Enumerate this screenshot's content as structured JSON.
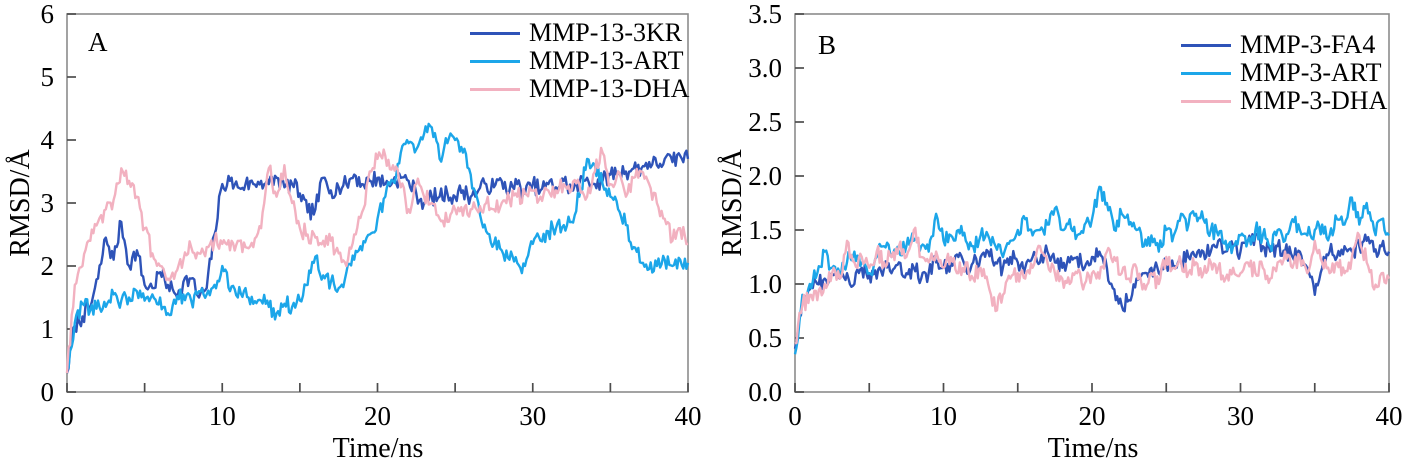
{
  "figure": {
    "panel_a_letter": "A",
    "panel_b_letter": "B",
    "axis_color": "#8c8c8c",
    "tick_color": "#4d4d4d",
    "text_color": "#000000"
  },
  "chart_data": [
    {
      "type": "line",
      "panel": "A",
      "title": "",
      "xlabel": "Time/ns",
      "ylabel": "RMSD/Å",
      "xlim": [
        0,
        40
      ],
      "ylim": [
        0,
        6
      ],
      "grid": false,
      "legend_position": "top-right-inside",
      "x_major_ticks": [
        {
          "v": 0,
          "label": "0"
        },
        {
          "v": 10,
          "label": "10"
        },
        {
          "v": 20,
          "label": "20"
        },
        {
          "v": 30,
          "label": "30"
        },
        {
          "v": 40,
          "label": "40"
        }
      ],
      "x_minor_ticks": [
        5,
        15,
        25,
        35
      ],
      "y_ticks": [
        {
          "v": 0,
          "label": "0"
        },
        {
          "v": 1,
          "label": "1"
        },
        {
          "v": 2,
          "label": "2"
        },
        {
          "v": 3,
          "label": "3"
        },
        {
          "v": 4,
          "label": "4"
        },
        {
          "v": 5,
          "label": "5"
        },
        {
          "v": 6,
          "label": "6"
        }
      ],
      "t_start": 0,
      "t_step": 0.5,
      "series": [
        {
          "name": "MMP-13-3KR",
          "color": "#2e53b8",
          "values": [
            0.3,
            1.05,
            1.2,
            1.35,
            1.8,
            2.45,
            2.1,
            2.7,
            2.0,
            2.25,
            1.7,
            1.65,
            1.9,
            1.7,
            1.55,
            1.75,
            1.8,
            1.5,
            1.65,
            2.5,
            3.3,
            3.35,
            3.25,
            3.3,
            3.3,
            3.35,
            3.3,
            3.4,
            3.25,
            3.3,
            3.15,
            2.85,
            2.9,
            3.4,
            3.2,
            3.25,
            3.3,
            3.45,
            3.3,
            3.35,
            3.4,
            3.3,
            3.35,
            3.4,
            3.35,
            3.15,
            3.0,
            3.1,
            3.1,
            3.15,
            3.1,
            3.2,
            3.1,
            3.2,
            3.3,
            3.25,
            3.35,
            3.2,
            3.3,
            3.15,
            3.3,
            3.2,
            3.3,
            3.25,
            3.35,
            3.2,
            3.3,
            3.4,
            3.3,
            3.35,
            3.45,
            3.5,
            3.5,
            3.55,
            3.55,
            3.65,
            3.6,
            3.7,
            3.65,
            3.75,
            3.7
          ]
        },
        {
          "name": "MMP-13-ART",
          "color": "#1ca6e9",
          "values": [
            0.35,
            1.1,
            1.4,
            1.3,
            1.45,
            1.35,
            1.55,
            1.45,
            1.5,
            1.6,
            1.45,
            1.55,
            1.5,
            1.25,
            1.4,
            1.55,
            1.45,
            1.6,
            1.55,
            1.7,
            2.0,
            1.6,
            1.5,
            1.65,
            1.4,
            1.45,
            1.35,
            1.25,
            1.4,
            1.35,
            1.45,
            1.7,
            2.15,
            1.85,
            1.75,
            1.65,
            1.9,
            2.1,
            2.25,
            2.5,
            2.75,
            3.1,
            3.35,
            3.8,
            3.95,
            3.85,
            4.1,
            4.2,
            3.7,
            3.95,
            4.0,
            3.8,
            3.45,
            3.0,
            2.55,
            2.35,
            2.25,
            2.1,
            2.05,
            2.0,
            2.35,
            2.4,
            2.55,
            2.6,
            2.65,
            2.7,
            3.1,
            3.7,
            3.6,
            3.3,
            3.1,
            2.9,
            2.65,
            2.3,
            2.05,
            1.95,
            2.0,
            2.1,
            2.0,
            2.1,
            2.05
          ]
        },
        {
          "name": "MMP-13-DHA",
          "color": "#f2b1c0",
          "values": [
            0.3,
            1.7,
            2.0,
            2.4,
            2.7,
            2.9,
            3.05,
            3.55,
            3.35,
            3.1,
            2.6,
            2.2,
            2.0,
            1.8,
            1.9,
            2.1,
            2.3,
            2.2,
            2.3,
            2.4,
            2.35,
            2.25,
            2.4,
            2.3,
            2.3,
            2.6,
            3.55,
            3.1,
            3.6,
            3.0,
            2.6,
            2.5,
            2.45,
            2.4,
            2.4,
            2.2,
            2.0,
            2.5,
            2.85,
            3.5,
            3.7,
            3.75,
            3.6,
            3.25,
            2.9,
            3.3,
            3.1,
            3.0,
            2.75,
            2.7,
            2.9,
            2.8,
            2.9,
            2.85,
            3.0,
            2.9,
            3.0,
            3.05,
            3.1,
            3.15,
            3.2,
            3.1,
            3.2,
            3.2,
            3.3,
            3.2,
            3.3,
            3.1,
            3.5,
            3.8,
            3.3,
            3.5,
            3.1,
            3.4,
            3.5,
            3.3,
            3.0,
            2.75,
            2.4,
            2.6,
            2.35
          ]
        }
      ]
    },
    {
      "type": "line",
      "panel": "B",
      "title": "",
      "xlabel": "Time/ns",
      "ylabel": "RMSD/Å",
      "xlim": [
        0,
        40
      ],
      "ylim": [
        0,
        3.5
      ],
      "grid": false,
      "legend_position": "top-right-inside",
      "x_major_ticks": [
        {
          "v": 0,
          "label": "0"
        },
        {
          "v": 10,
          "label": "10"
        },
        {
          "v": 20,
          "label": "20"
        },
        {
          "v": 30,
          "label": "30"
        },
        {
          "v": 40,
          "label": "40"
        }
      ],
      "x_minor_ticks": [
        5,
        15,
        25,
        35
      ],
      "y_ticks": [
        {
          "v": 0,
          "label": "0.0"
        },
        {
          "v": 0.5,
          "label": "0.5"
        },
        {
          "v": 1,
          "label": "1.0"
        },
        {
          "v": 1.5,
          "label": "1.5"
        },
        {
          "v": 2,
          "label": "2.0"
        },
        {
          "v": 2.5,
          "label": "2.5"
        },
        {
          "v": 3,
          "label": "3.0"
        },
        {
          "v": 3.5,
          "label": "3.5"
        }
      ],
      "t_start": 0,
      "t_step": 0.5,
      "series": [
        {
          "name": "MMP-3-FA4",
          "color": "#2e53b8",
          "values": [
            0.4,
            0.85,
            0.95,
            1.0,
            1.05,
            1.1,
            1.05,
            1.1,
            1.0,
            1.15,
            1.1,
            1.05,
            1.15,
            1.1,
            1.2,
            1.1,
            1.15,
            1.05,
            1.1,
            1.2,
            1.15,
            1.2,
            1.25,
            1.15,
            1.2,
            1.25,
            1.3,
            1.2,
            1.15,
            1.25,
            1.2,
            1.15,
            1.25,
            1.2,
            1.3,
            1.2,
            1.15,
            1.2,
            1.25,
            1.15,
            1.25,
            1.3,
            1.15,
            0.95,
            0.8,
            0.85,
            1.05,
            1.1,
            1.15,
            1.1,
            1.2,
            1.15,
            1.2,
            1.25,
            1.25,
            1.3,
            1.3,
            1.4,
            1.3,
            1.35,
            1.3,
            1.4,
            1.45,
            1.35,
            1.3,
            1.35,
            1.3,
            1.25,
            1.3,
            1.15,
            0.9,
            1.15,
            1.3,
            1.25,
            1.35,
            1.3,
            1.35,
            1.4,
            1.3,
            1.35,
            1.3
          ]
        },
        {
          "name": "MMP-3-ART",
          "color": "#1ca6e9",
          "values": [
            0.35,
            0.9,
            1.0,
            1.1,
            1.3,
            1.15,
            1.1,
            1.2,
            1.3,
            1.2,
            1.1,
            1.25,
            1.35,
            1.25,
            1.3,
            1.35,
            1.4,
            1.35,
            1.3,
            1.65,
            1.4,
            1.45,
            1.5,
            1.4,
            1.35,
            1.45,
            1.45,
            1.35,
            1.25,
            1.4,
            1.5,
            1.6,
            1.45,
            1.5,
            1.55,
            1.7,
            1.5,
            1.6,
            1.45,
            1.55,
            1.6,
            1.9,
            1.75,
            1.5,
            1.65,
            1.55,
            1.5,
            1.35,
            1.45,
            1.3,
            1.5,
            1.45,
            1.65,
            1.55,
            1.65,
            1.6,
            1.5,
            1.45,
            1.4,
            1.35,
            1.45,
            1.4,
            1.5,
            1.45,
            1.35,
            1.5,
            1.4,
            1.6,
            1.5,
            1.45,
            1.5,
            1.55,
            1.45,
            1.6,
            1.55,
            1.8,
            1.55,
            1.75,
            1.5,
            1.6,
            1.45
          ]
        },
        {
          "name": "MMP-3-DHA",
          "color": "#f2b1c0",
          "values": [
            0.45,
            0.8,
            0.9,
            0.85,
            1.0,
            1.1,
            1.05,
            1.4,
            1.2,
            1.25,
            1.15,
            1.3,
            1.2,
            1.25,
            1.35,
            1.25,
            1.5,
            1.25,
            1.2,
            1.3,
            1.15,
            1.25,
            1.1,
            1.2,
            1.05,
            1.15,
            1.0,
            0.75,
            0.9,
            1.05,
            1.1,
            1.05,
            1.15,
            1.35,
            1.2,
            1.1,
            1.05,
            1.0,
            1.1,
            1.0,
            1.1,
            1.05,
            1.3,
            1.25,
            1.1,
            1.05,
            1.15,
            1.0,
            1.1,
            1.0,
            1.25,
            1.15,
            1.2,
            1.1,
            1.2,
            1.1,
            1.2,
            1.15,
            1.05,
            1.15,
            1.1,
            1.2,
            1.1,
            1.15,
            1.05,
            1.2,
            1.3,
            1.15,
            1.25,
            1.1,
            1.4,
            1.2,
            1.1,
            1.2,
            1.1,
            1.25,
            1.45,
            1.2,
            0.95,
            1.1,
            1.05
          ]
        }
      ]
    }
  ]
}
